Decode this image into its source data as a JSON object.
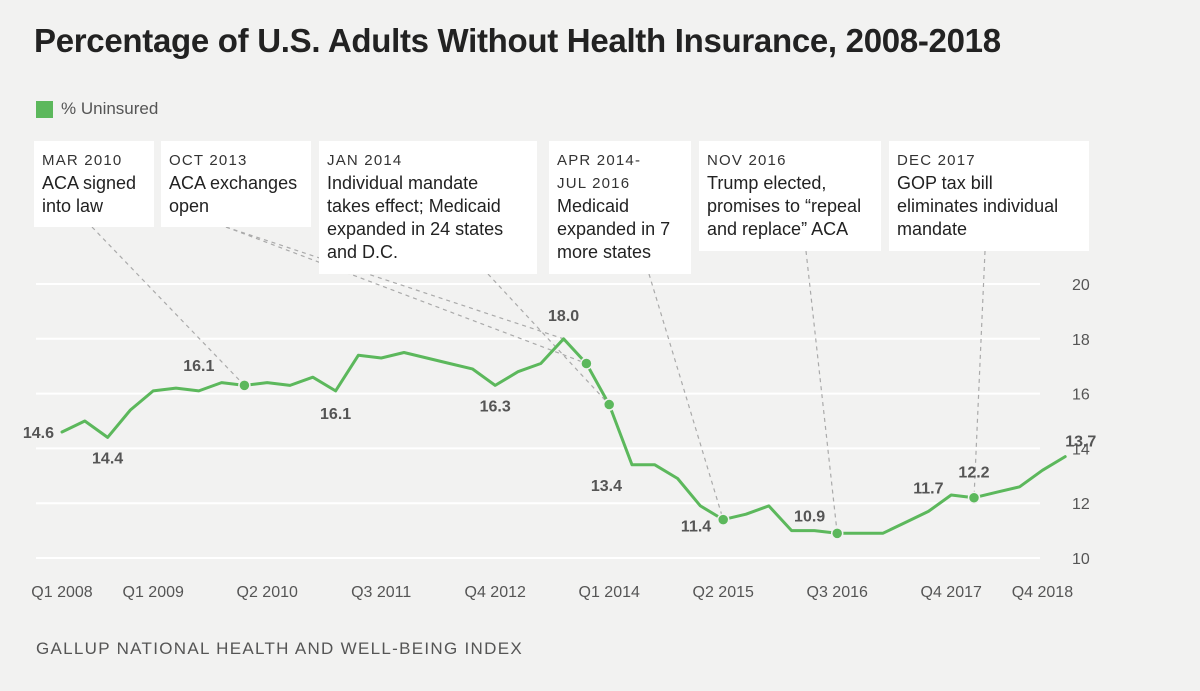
{
  "title": "Percentage of U.S. Adults Without Health Insurance, 2008-2018",
  "legend": {
    "label": "% Uninsured",
    "color": "#5cb85c"
  },
  "source": "GALLUP NATIONAL HEALTH AND WELL-BEING INDEX",
  "annotations": [
    {
      "date": "MAR 2010",
      "text": "ACA signed\ninto law"
    },
    {
      "date": "OCT 2013",
      "text": "ACA exchanges\nopen"
    },
    {
      "date": "JAN 2014",
      "text": "Individual mandate\ntakes effect; Medicaid\nexpanded in 24 states\nand D.C."
    },
    {
      "date": "APR 2014-\nJUL 2016",
      "text": "Medicaid\nexpanded in 7\nmore states"
    },
    {
      "date": "NOV 2016",
      "text": "Trump elected,\npromises to “repeal\nand replace” ACA"
    },
    {
      "date": "DEC 2017",
      "text": "GOP tax bill\neliminates individual\nmandate"
    }
  ],
  "chart_data": {
    "type": "line",
    "title": "Percentage of U.S. Adults Without Health Insurance, 2008-2018",
    "series": [
      {
        "name": "% Uninsured",
        "values": [
          14.6,
          15.0,
          14.4,
          15.4,
          16.1,
          16.2,
          16.1,
          16.4,
          16.3,
          16.4,
          16.3,
          16.6,
          16.1,
          17.4,
          17.3,
          17.5,
          17.3,
          17.1,
          16.9,
          16.3,
          16.8,
          17.1,
          18.0,
          17.1,
          15.6,
          13.4,
          13.4,
          12.9,
          11.9,
          11.4,
          11.6,
          11.9,
          11.0,
          11.0,
          10.9,
          10.9,
          10.9,
          11.3,
          11.7,
          12.3,
          12.2,
          12.4,
          12.6,
          13.2,
          13.7
        ]
      }
    ],
    "x_tick_labels": [
      "Q1 2008",
      "Q1 2009",
      "Q2 2010",
      "Q3 2011",
      "Q4 2012",
      "Q1 2014",
      "Q2 2015",
      "Q3 2016",
      "Q4 2017",
      "Q4 2018"
    ],
    "ylim": [
      10,
      20
    ],
    "yticks": [
      10,
      12,
      14,
      16,
      18,
      20
    ],
    "data_labels": [
      "14.6",
      "14.4",
      "16.1",
      "16.1",
      "16.3",
      "18.0",
      "13.4",
      "11.4",
      "10.9",
      "11.7",
      "12.2",
      "13.7"
    ],
    "grid": true
  }
}
